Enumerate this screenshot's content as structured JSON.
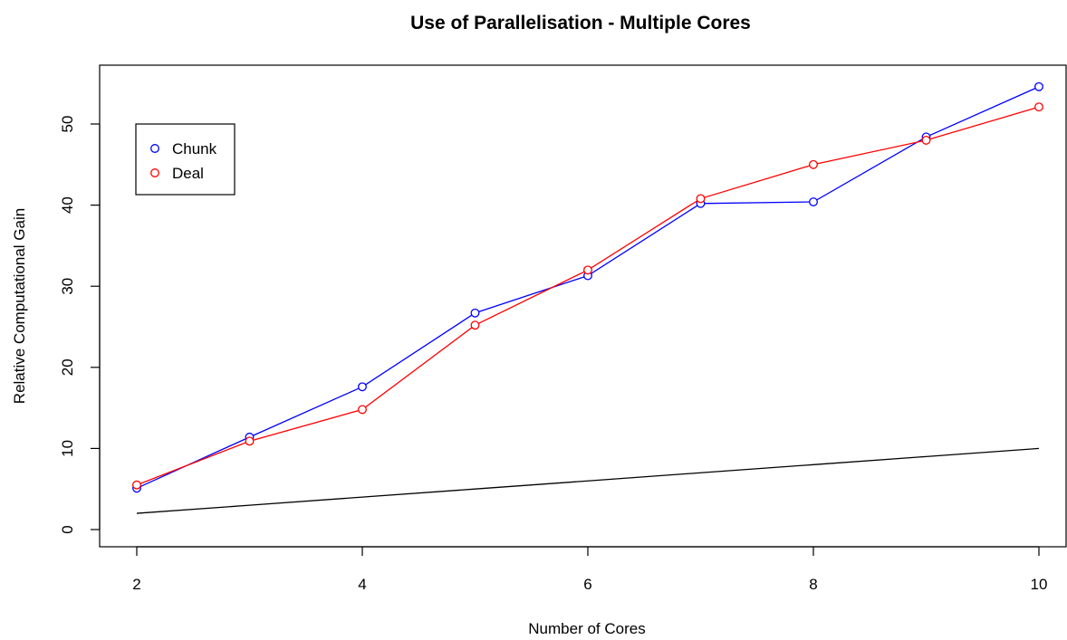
{
  "chart_data": {
    "type": "line",
    "title": "Use of Parallelisation - Multiple Cores",
    "xlabel": "Number of Cores",
    "ylabel": "Relative Computational Gain",
    "x": [
      2,
      3,
      4,
      5,
      6,
      7,
      8,
      9,
      10
    ],
    "xlim": [
      2,
      10
    ],
    "ylim": [
      0,
      55
    ],
    "xticks": [
      2,
      4,
      6,
      8,
      10
    ],
    "yticks": [
      0,
      10,
      20,
      30,
      40,
      50
    ],
    "grid": false,
    "legend_position": "top-left",
    "series": [
      {
        "name": "Chunk",
        "color": "#0000ff",
        "marker": "circle",
        "values": [
          5.1,
          11.4,
          17.6,
          26.7,
          31.3,
          40.2,
          40.4,
          48.4,
          54.6
        ]
      },
      {
        "name": "Deal",
        "color": "#ff0000",
        "marker": "circle",
        "values": [
          5.5,
          10.9,
          14.8,
          25.2,
          32.0,
          40.8,
          45.0,
          48.0,
          52.1
        ]
      },
      {
        "color": "#000000",
        "marker": "none",
        "values": [
          2,
          3,
          4,
          5,
          6,
          7,
          8,
          9,
          10
        ]
      }
    ]
  }
}
